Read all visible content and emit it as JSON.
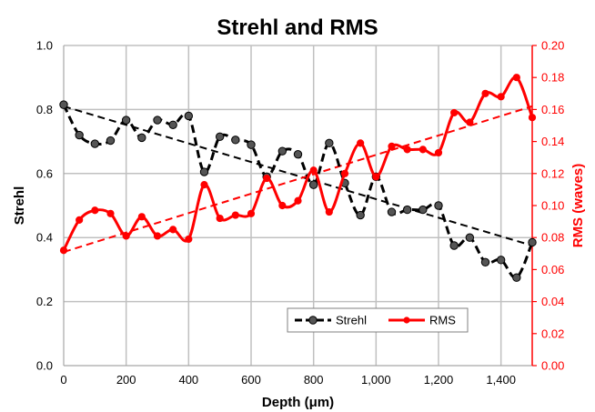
{
  "chart_data": {
    "type": "line",
    "title": "Strehl and RMS",
    "xlabel": "Depth (μm)",
    "ylabel": "Strehl",
    "y2label": "RMS (waves)",
    "xlim": [
      0,
      1500
    ],
    "ylim": [
      0.0,
      1.0
    ],
    "y2lim": [
      0.0,
      0.2
    ],
    "x_ticks": [
      "0",
      "200",
      "400",
      "600",
      "800",
      "1,000",
      "1,200",
      "1,400"
    ],
    "x_tick_values": [
      0,
      200,
      400,
      600,
      800,
      1000,
      1200,
      1400
    ],
    "y_ticks": [
      "0.0",
      "0.2",
      "0.4",
      "0.6",
      "0.8",
      "1.0"
    ],
    "y_tick_values": [
      0.0,
      0.2,
      0.4,
      0.6,
      0.8,
      1.0
    ],
    "y2_ticks": [
      "0.00",
      "0.02",
      "0.04",
      "0.06",
      "0.08",
      "0.10",
      "0.12",
      "0.14",
      "0.16",
      "0.18",
      "0.20"
    ],
    "y2_tick_values": [
      0.0,
      0.02,
      0.04,
      0.06,
      0.08,
      0.1,
      0.12,
      0.14,
      0.16,
      0.18,
      0.2
    ],
    "grid": true,
    "legend_position": "bottom-center",
    "x": [
      0,
      50,
      100,
      150,
      200,
      250,
      300,
      350,
      400,
      450,
      500,
      550,
      600,
      650,
      700,
      750,
      800,
      850,
      900,
      950,
      1000,
      1050,
      1100,
      1150,
      1200,
      1250,
      1300,
      1350,
      1400,
      1450,
      1500
    ],
    "series": [
      {
        "name": "Strehl",
        "axis": "left",
        "color": "#000000",
        "style": "dashed",
        "values": [
          0.815,
          0.72,
          0.693,
          0.703,
          0.767,
          0.712,
          0.767,
          0.752,
          0.78,
          0.605,
          0.715,
          0.705,
          0.69,
          0.59,
          0.67,
          0.66,
          0.565,
          0.695,
          0.57,
          0.47,
          0.59,
          0.48,
          0.487,
          0.487,
          0.5,
          0.375,
          0.4,
          0.323,
          0.33,
          0.275,
          0.385
        ]
      },
      {
        "name": "RMS",
        "axis": "right",
        "color": "#ff0000",
        "style": "solid",
        "values": [
          0.072,
          0.091,
          0.097,
          0.095,
          0.081,
          0.093,
          0.081,
          0.085,
          0.079,
          0.113,
          0.092,
          0.094,
          0.095,
          0.117,
          0.1,
          0.103,
          0.122,
          0.096,
          0.12,
          0.139,
          0.118,
          0.137,
          0.135,
          0.135,
          0.133,
          0.158,
          0.152,
          0.17,
          0.168,
          0.18,
          0.155
        ]
      }
    ],
    "trendlines": [
      {
        "series": "Strehl",
        "axis": "left",
        "color": "#000000",
        "from": [
          0,
          0.81
        ],
        "to": [
          1500,
          0.375
        ]
      },
      {
        "series": "RMS",
        "axis": "right",
        "color": "#ff0000",
        "from": [
          0,
          0.071
        ],
        "to": [
          1500,
          0.162
        ]
      }
    ]
  }
}
